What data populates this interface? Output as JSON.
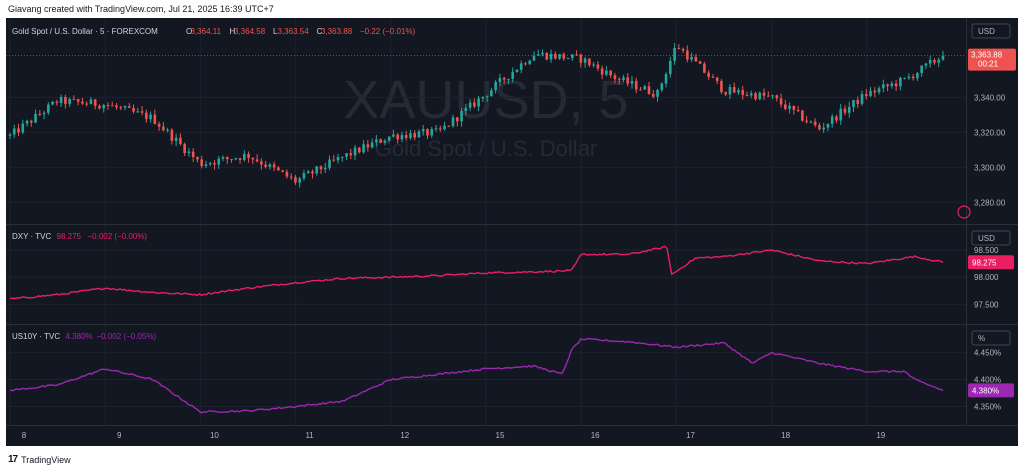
{
  "header": {
    "credit": "Giavang created with TradingView.com, Jul 21, 2025 16:39 UTC+7"
  },
  "footer": {
    "logo": "17",
    "brand": "TradingView"
  },
  "colors": {
    "bg": "#131722",
    "grid": "#1e222d",
    "axis_text": "#b2b5be",
    "up": "#26a69a",
    "down": "#ef5350",
    "dxy": "#e91e63",
    "us10y": "#9c27b0",
    "watermark": "#262a35"
  },
  "watermark": {
    "symbol": "XAUUSD, 5",
    "name": "Gold Spot / U.S. Dollar"
  },
  "time_labels": [
    "8",
    "9",
    "10",
    "11",
    "12",
    "15",
    "16",
    "17",
    "18",
    "19"
  ],
  "chart_data": [
    {
      "type": "candlestick",
      "legend": {
        "title": "Gold Spot / U.S. Dollar · 5 · FOREXCOM",
        "o_label": "O",
        "o": "3,364.11",
        "h_label": "H",
        "h": "3,364.58",
        "l_label": "L",
        "l": "3,363.54",
        "c_label": "C",
        "c": "3,363.88",
        "change": "−0.22 (−0.01%)"
      },
      "unit_label": "USD",
      "y_ticks": [
        "3,340.00",
        "3,320.00",
        "3,300.00",
        "3,280.00"
      ],
      "y_tick_values": [
        3340,
        3320,
        3300,
        3280
      ],
      "ylim": [
        3271,
        3382
      ],
      "last_price": "3,363.88",
      "last_value": 3363.88,
      "countdown": "00:21",
      "x": [
        0,
        0.5,
        1,
        1.5,
        2,
        2.5,
        3,
        3.5,
        4,
        4.5,
        5,
        5.5,
        6,
        6.4,
        6.8,
        7,
        7.5,
        8,
        8.5,
        9,
        9.4,
        9.8
      ],
      "close": [
        3318,
        3338,
        3336,
        3328,
        3302,
        3307,
        3292,
        3306,
        3318,
        3320,
        3342,
        3365,
        3362,
        3350,
        3342,
        3370,
        3344,
        3340,
        3322,
        3342,
        3350,
        3363.88
      ]
    },
    {
      "type": "line",
      "legend": {
        "title": "DXY · TVC",
        "value": "98.275",
        "change": "−0.002 (−0.00%)"
      },
      "unit_label": "USD",
      "y_ticks": [
        "98.500",
        "98.000",
        "97.500"
      ],
      "y_tick_values": [
        98.5,
        98.0,
        97.5
      ],
      "ylim": [
        97.25,
        98.85
      ],
      "last_price": "98.275",
      "last_value": 98.275,
      "x": [
        0,
        0.5,
        1,
        1.5,
        2,
        2.5,
        3,
        3.5,
        4,
        4.5,
        5,
        5.5,
        5.9,
        6,
        6.5,
        6.9,
        6.95,
        7.2,
        7.5,
        8,
        8.5,
        9,
        9.5,
        9.8
      ],
      "values": [
        97.6,
        97.68,
        97.8,
        97.72,
        97.68,
        97.8,
        97.9,
        97.98,
        98.0,
        98.03,
        98.08,
        98.1,
        98.12,
        98.42,
        98.42,
        98.56,
        98.05,
        98.35,
        98.38,
        98.5,
        98.3,
        98.25,
        98.38,
        98.275
      ]
    },
    {
      "type": "line",
      "legend": {
        "title": "US10Y · TVC",
        "value": "4.380%",
        "change": "−0.002 (−0.05%)"
      },
      "unit_label": "%",
      "y_ticks": [
        "4.450%",
        "4.400%",
        "4.350%"
      ],
      "y_tick_values": [
        4.45,
        4.4,
        4.35
      ],
      "ylim": [
        4.325,
        4.49
      ],
      "last_price": "4.380%",
      "last_value": 4.38,
      "x": [
        0,
        0.5,
        1,
        1.5,
        2,
        2.5,
        3,
        3.5,
        4,
        4.5,
        5,
        5.5,
        5.8,
        5.9,
        6,
        6.5,
        7,
        7.5,
        7.8,
        8,
        8.5,
        9,
        9.4,
        9.5,
        9.8
      ],
      "values": [
        4.38,
        4.39,
        4.42,
        4.4,
        4.34,
        4.342,
        4.35,
        4.36,
        4.4,
        4.41,
        4.42,
        4.425,
        4.41,
        4.455,
        4.475,
        4.47,
        4.46,
        4.468,
        4.43,
        4.45,
        4.43,
        4.415,
        4.415,
        4.4,
        4.38
      ]
    }
  ]
}
